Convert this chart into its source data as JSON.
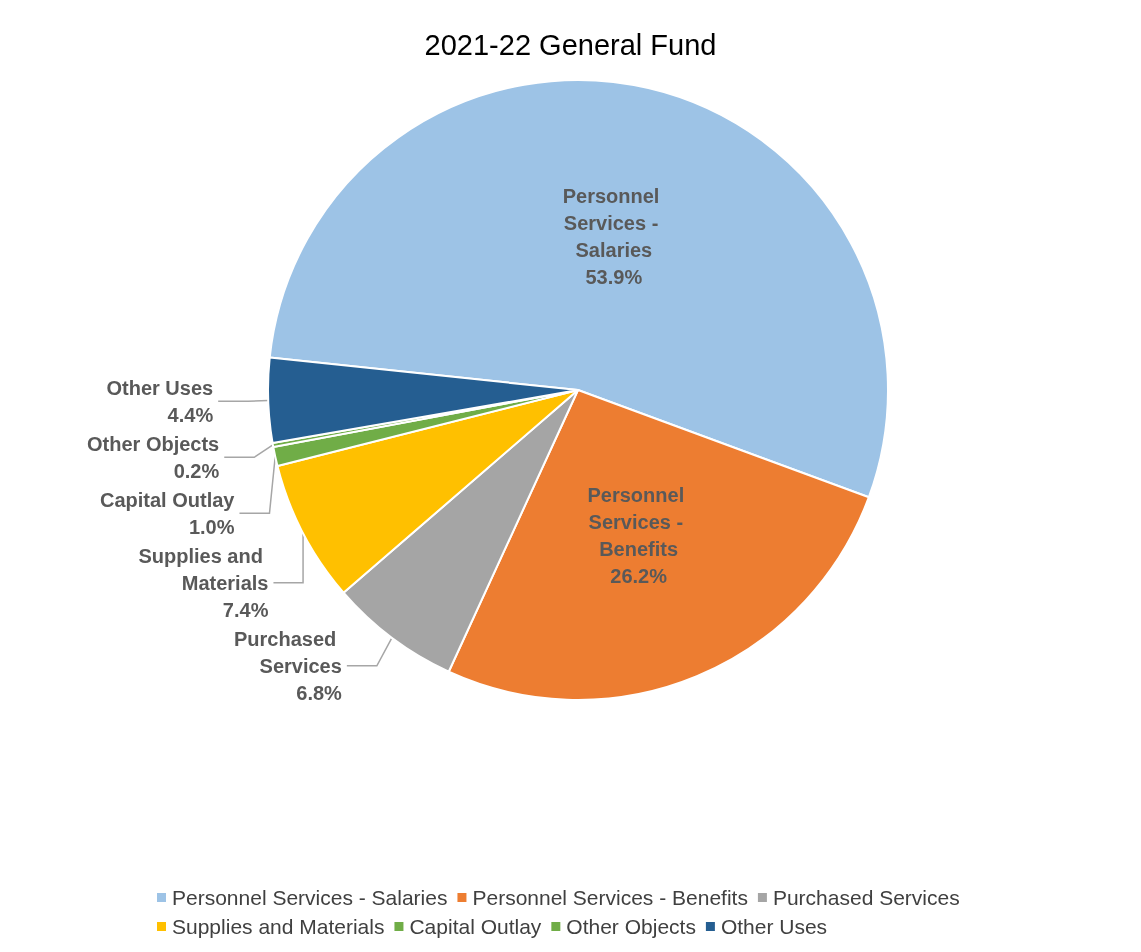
{
  "chart_data": {
    "type": "pie",
    "title": "2021-22 General Fund",
    "categories": [
      "Personnel Services - Salaries",
      "Personnel Services - Benefits",
      "Purchased Services",
      "Supplies and Materials",
      "Capital Outlay",
      "Other Objects",
      "Other Uses"
    ],
    "values": [
      53.9,
      26.2,
      6.8,
      7.4,
      1.0,
      0.2,
      4.4
    ],
    "value_labels": [
      "53.9%",
      "26.2%",
      "6.8%",
      "7.4%",
      "1.0%",
      "0.2%",
      "4.4%"
    ],
    "colors": [
      "#9dc3e6",
      "#ed7d31",
      "#a5a5a5",
      "#ffc000",
      "#70ad47",
      "#70ad47",
      "#255e91"
    ],
    "legend": "bottom"
  }
}
